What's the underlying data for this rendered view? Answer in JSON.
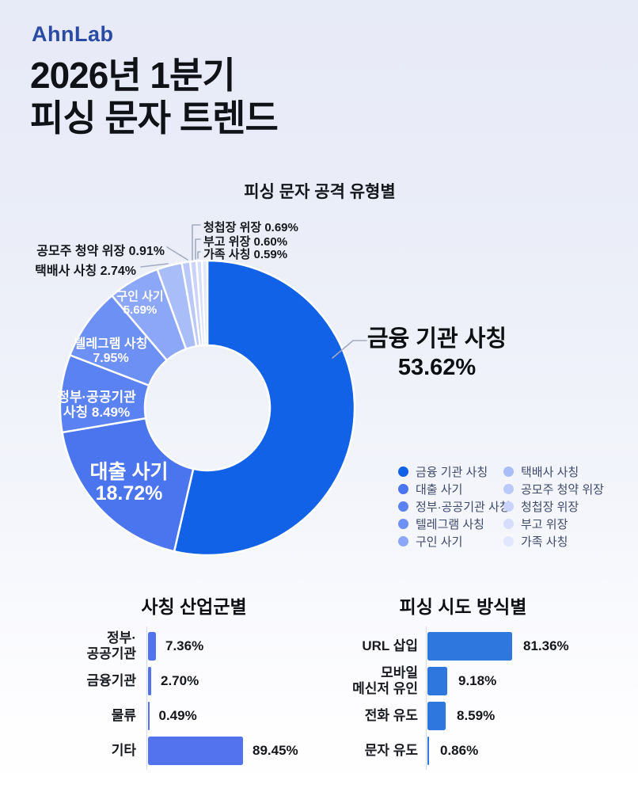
{
  "header": {
    "logo": "AhnLab",
    "title_line1": "2026년 1분기",
    "title_line2": "피싱 문자 트렌드"
  },
  "accent_colors": {
    "logo_blue": "#2a4ba3",
    "donut_main_blue": "#1262e8",
    "left_bar_blue": "#5272ee",
    "right_bar_blue": "#2d77de"
  },
  "donut_labels": {
    "financial": [
      "금융 기관 사칭",
      "53.62%"
    ],
    "loan": [
      "대출 사기",
      "18.72%"
    ],
    "government": [
      "정부·공공기관",
      "사칭 8.49%"
    ],
    "telegram": [
      "텔레그램 사칭",
      "7.95%"
    ],
    "job": [
      "구인 사기",
      "5.69%"
    ],
    "delivery": "택배사 사칭 2.74%",
    "ipo": "공모주 청약 위장 0.91%",
    "wedding": "청첩장 위장 0.69%",
    "obituary": "부고 위장 0.60%",
    "family": "가족 사칭 0.59%"
  },
  "chart_data": [
    {
      "type": "pie",
      "variant": "donut",
      "title": "피싱 문자 공격 유형별",
      "labels": [
        "금융 기관 사칭",
        "대출 사기",
        "정부·공공기관 사칭",
        "텔레그램 사칭",
        "구인 사기",
        "택배사 사칭",
        "공모주 청약 위장",
        "청첩장 위장",
        "부고 위장",
        "가족 사칭"
      ],
      "values": [
        53.62,
        18.72,
        8.49,
        7.95,
        5.69,
        2.74,
        0.91,
        0.69,
        0.6,
        0.59
      ],
      "value_labels": [
        "53.62%",
        "18.72%",
        "8.49%",
        "7.95%",
        "5.69%",
        "2.74%",
        "0.91%",
        "0.69%",
        "0.60%",
        "0.59%"
      ],
      "colors": [
        "#1262e8",
        "#4b74ef",
        "#5b82f2",
        "#6d90f4",
        "#8ca7f7",
        "#a9bdf9",
        "#bac9fa",
        "#c9d3fb",
        "#d6defc",
        "#e1e7fd"
      ],
      "start_angle": "12 o'clock",
      "direction": "clockwise",
      "legend_position": "bottom-right, two columns of five"
    },
    {
      "type": "bar",
      "orientation": "horizontal",
      "title": "사칭 산업군별",
      "categories": [
        "정부·\n공공기관",
        "금융기관",
        "물류",
        "기타"
      ],
      "values": [
        7.36,
        2.7,
        0.49,
        89.45
      ],
      "value_labels": [
        "7.36%",
        "2.70%",
        "0.49%",
        "89.45%"
      ],
      "bar_color": "#5272ee",
      "xlim": [
        0,
        100
      ],
      "grid": false
    },
    {
      "type": "bar",
      "orientation": "horizontal",
      "title": "피싱 시도 방식별",
      "categories": [
        "URL 삽입",
        "모바일\n메신저 유인",
        "전화 유도",
        "문자 유도"
      ],
      "values": [
        81.36,
        9.18,
        8.59,
        0.86
      ],
      "value_labels": [
        "81.36%",
        "9.18%",
        "8.59%",
        "0.86%"
      ],
      "bar_color": "#2d77de",
      "xlim": [
        0,
        100
      ],
      "grid": false
    }
  ]
}
